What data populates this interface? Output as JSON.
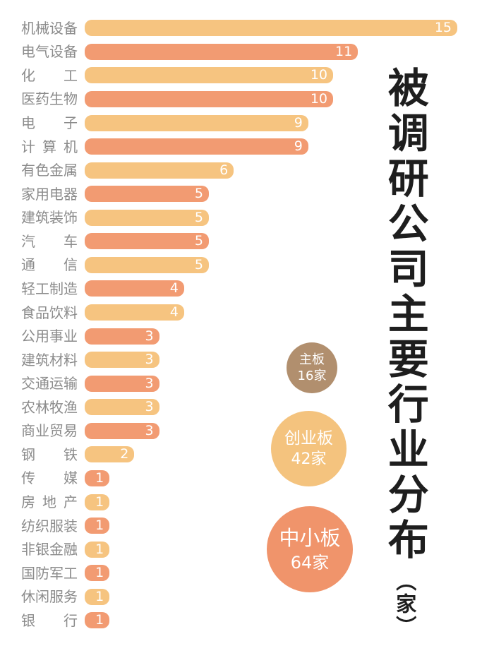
{
  "title": {
    "text": "被调研公司主要行业分布",
    "unit": "（家）"
  },
  "chart_data": {
    "type": "bar",
    "orientation": "horizontal",
    "title": "被调研公司主要行业分布（家）",
    "categories": [
      "机械设备",
      "电气设备",
      "化工",
      "医药生物",
      "电子",
      "计算机",
      "有色金属",
      "家用电器",
      "建筑装饰",
      "汽车",
      "通信",
      "轻工制造",
      "食品饮料",
      "公用事业",
      "建筑材料",
      "交通运输",
      "农林牧渔",
      "商业贸易",
      "钢铁",
      "传媒",
      "房地产",
      "纺织服装",
      "非银金融",
      "国防军工",
      "休闲服务",
      "银行"
    ],
    "values": [
      15,
      11,
      10,
      10,
      9,
      9,
      6,
      5,
      5,
      5,
      5,
      4,
      4,
      3,
      3,
      3,
      3,
      3,
      2,
      1,
      1,
      1,
      1,
      1,
      1,
      1
    ],
    "xlim": [
      0,
      15
    ],
    "grid": false,
    "value_labels_position": "inside-end",
    "bar_palette": [
      "#F6C480",
      "#F29B72"
    ]
  },
  "legend_circles": [
    {
      "label": "主板",
      "count": "16家",
      "color": "#B18F6E"
    },
    {
      "label": "创业板",
      "count": "42家",
      "color": "#F4C37E"
    },
    {
      "label": "中小板",
      "count": "64家",
      "color": "#F0946B"
    }
  ],
  "colors": {
    "background": "#FFFFFF",
    "category_label": "#8B8B8B",
    "value_label": "#FFFFFF",
    "title": "#1E1E1E"
  }
}
